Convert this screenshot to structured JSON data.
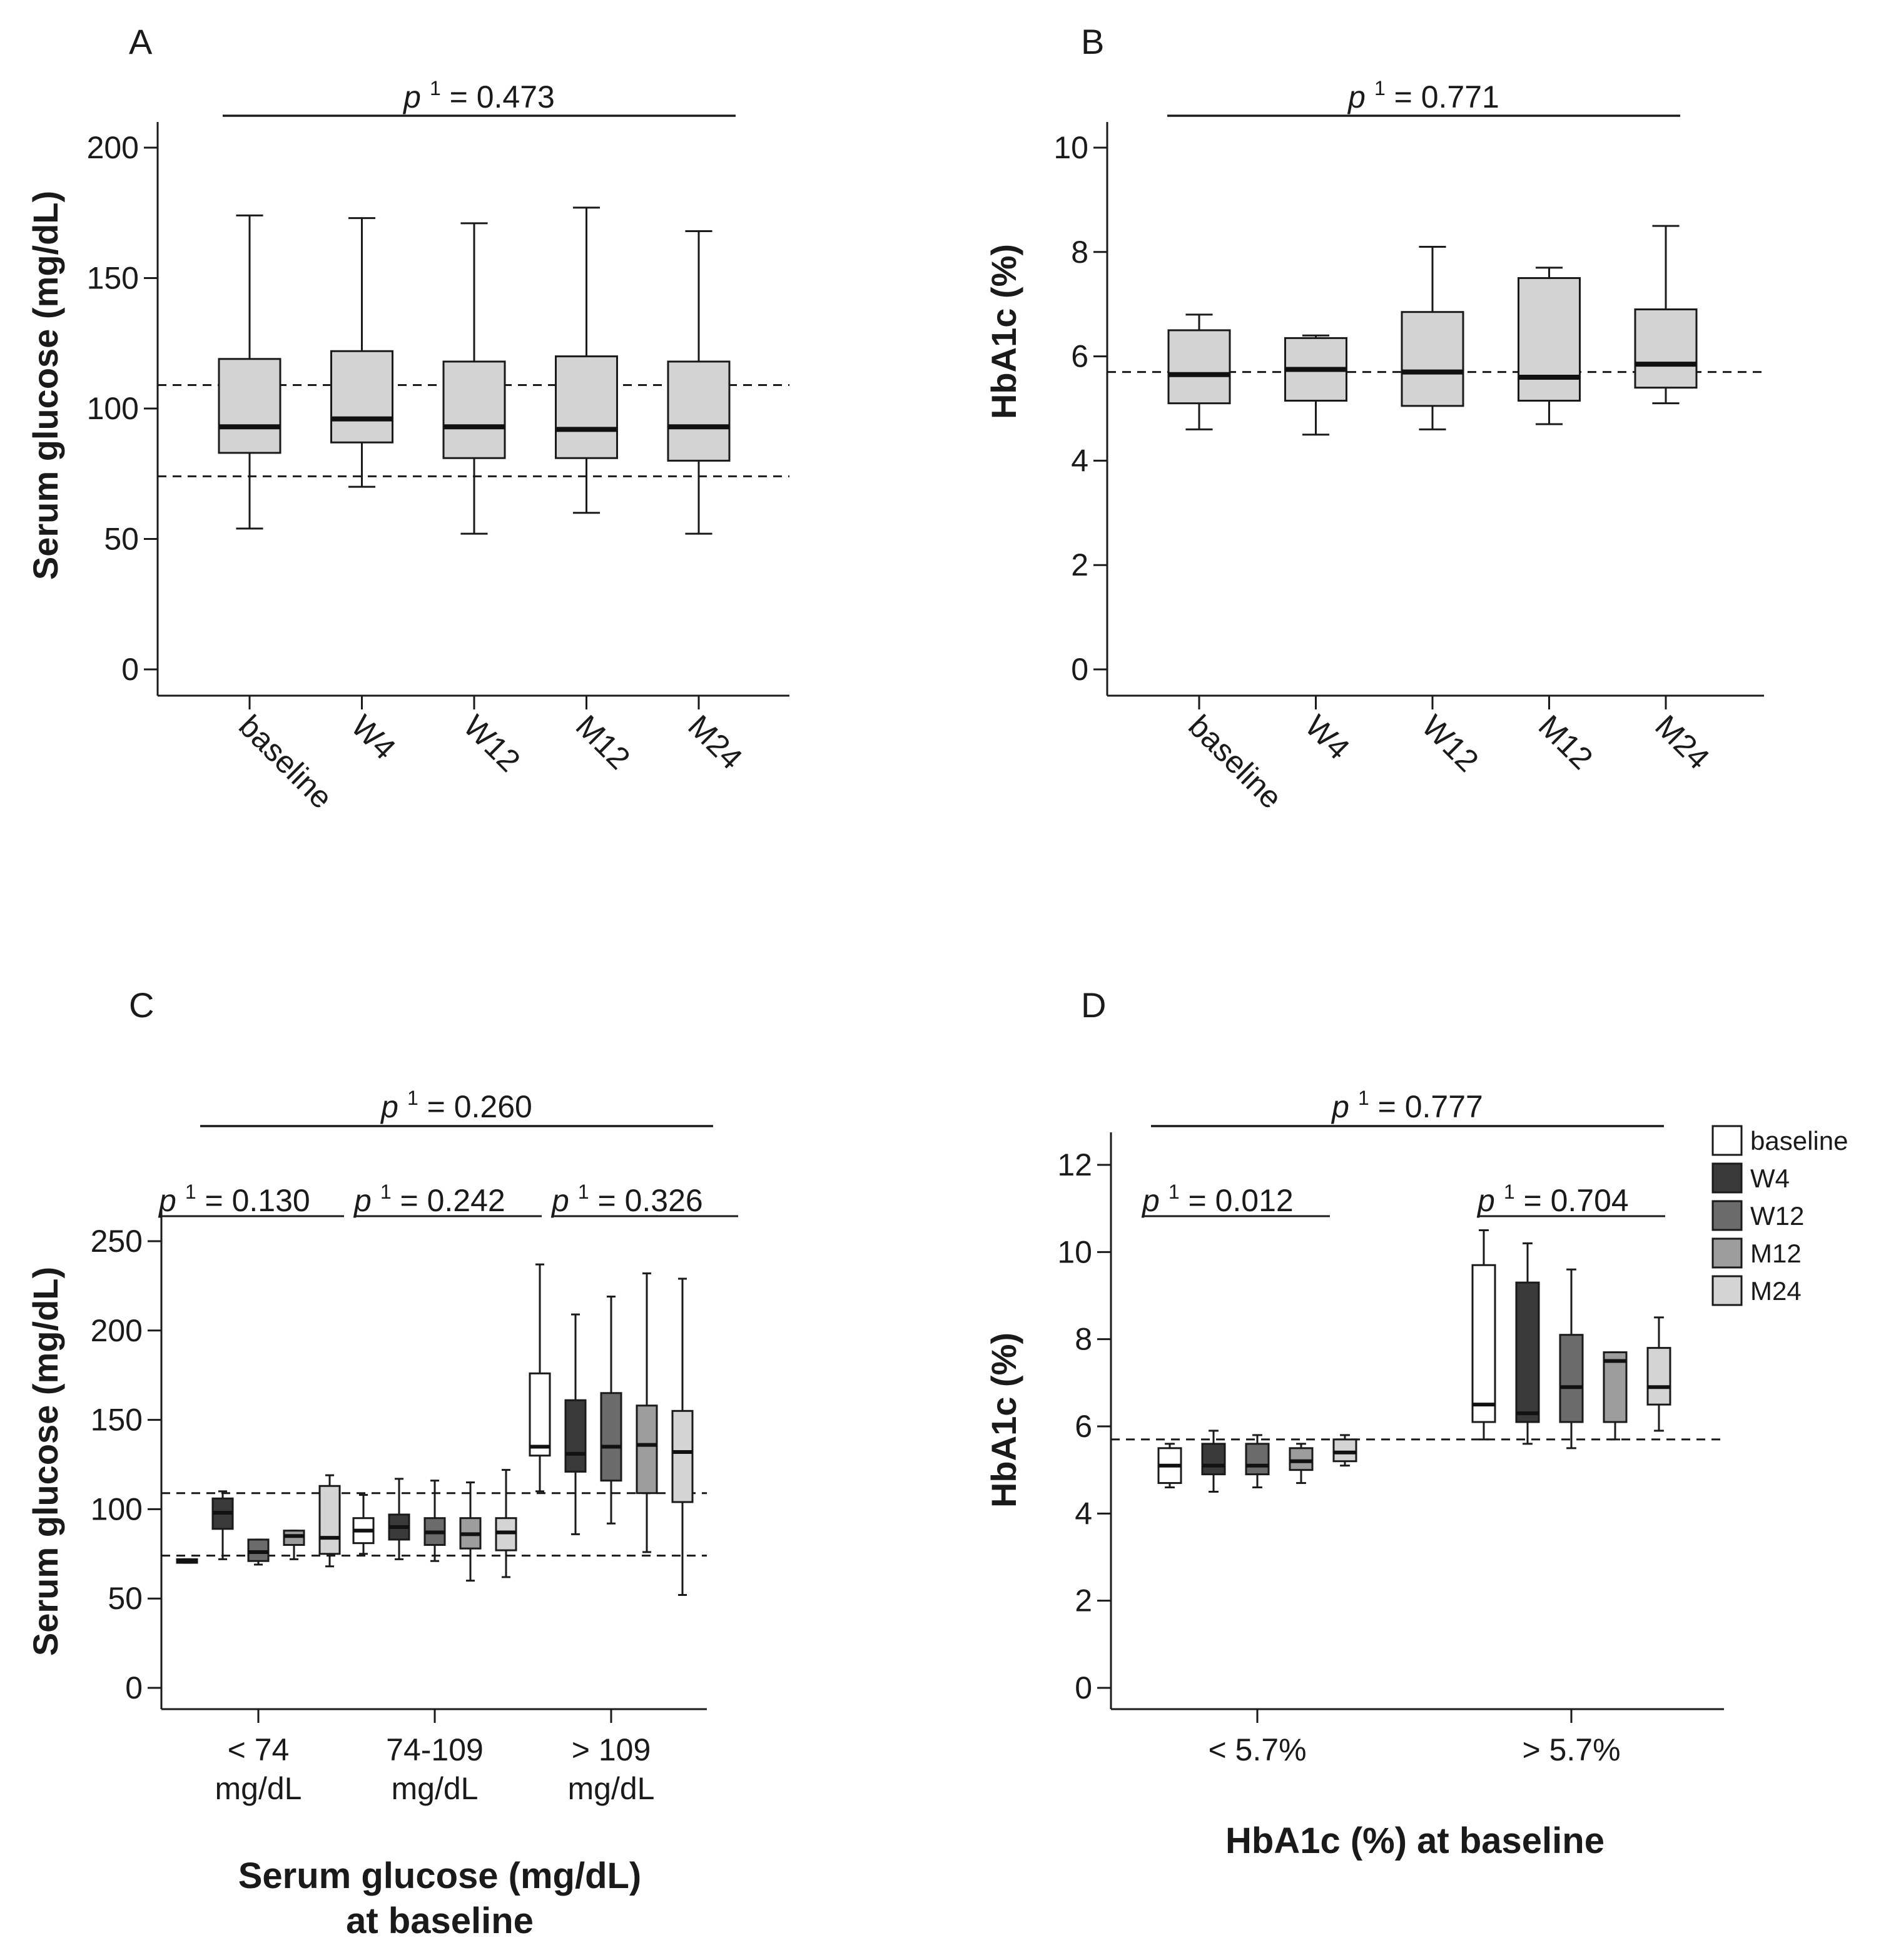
{
  "figure": {
    "colors": {
      "baseline": "#ffffff",
      "W4": "#3a3a3a",
      "W12": "#6b6b6b",
      "M12": "#9d9d9d",
      "M24": "#d4d4d4",
      "single_series_box": "#d3d3d3",
      "stroke": "#1a1a1a"
    }
  },
  "chart_data": [
    {
      "panel": "A",
      "type": "box",
      "ylabel": "Serum glucose (mg/dL)",
      "ylim": [
        0,
        200
      ],
      "yticks": [
        0,
        50,
        100,
        150,
        200
      ],
      "categories": [
        "baseline",
        "W4",
        "W12",
        "M12",
        "M24"
      ],
      "ref_lines": [
        109,
        74
      ],
      "p_overall": {
        "prefix": "p",
        "sup": "1",
        "text": " = 0.473"
      },
      "boxes": [
        {
          "min": 54,
          "q1": 83,
          "median": 93,
          "q3": 119,
          "max": 174
        },
        {
          "min": 70,
          "q1": 87,
          "median": 96,
          "q3": 122,
          "max": 173
        },
        {
          "min": 52,
          "q1": 81,
          "median": 93,
          "q3": 118,
          "max": 171
        },
        {
          "min": 60,
          "q1": 81,
          "median": 92,
          "q3": 120,
          "max": 177
        },
        {
          "min": 52,
          "q1": 80,
          "median": 93,
          "q3": 118,
          "max": 168
        }
      ]
    },
    {
      "panel": "B",
      "type": "box",
      "ylabel": "HbA1c (%)",
      "ylim": [
        0,
        10
      ],
      "yticks": [
        0,
        2,
        4,
        6,
        8,
        10
      ],
      "categories": [
        "baseline",
        "W4",
        "W12",
        "M12",
        "M24"
      ],
      "ref_lines": [
        5.7
      ],
      "p_overall": {
        "prefix": "p",
        "sup": "1",
        "text": " = 0.771"
      },
      "boxes": [
        {
          "min": 4.6,
          "q1": 5.1,
          "median": 5.65,
          "q3": 6.5,
          "max": 6.8
        },
        {
          "min": 4.5,
          "q1": 5.15,
          "median": 5.75,
          "q3": 6.35,
          "max": 6.4
        },
        {
          "min": 4.6,
          "q1": 5.05,
          "median": 5.7,
          "q3": 6.85,
          "max": 8.1
        },
        {
          "min": 4.7,
          "q1": 5.15,
          "median": 5.6,
          "q3": 7.5,
          "max": 7.7
        },
        {
          "min": 5.1,
          "q1": 5.4,
          "median": 5.85,
          "q3": 6.9,
          "max": 8.5
        }
      ]
    },
    {
      "panel": "C",
      "type": "grouped-box",
      "ylabel": "Serum glucose (mg/dL)",
      "xlabel_lines": [
        "Serum glucose (mg/dL)",
        "at baseline"
      ],
      "ylim": [
        0,
        250
      ],
      "yticks": [
        0,
        50,
        100,
        150,
        200,
        250
      ],
      "ref_lines": [
        109,
        74
      ],
      "groups": [
        {
          "label_lines": [
            "< 74",
            "mg/dL"
          ],
          "p": {
            "prefix": "p",
            "sup": "1",
            "text": " = 0.130"
          }
        },
        {
          "label_lines": [
            "74-109",
            "mg/dL"
          ],
          "p": {
            "prefix": "p",
            "sup": "1",
            "text": " = 0.242"
          }
        },
        {
          "label_lines": [
            "> 109",
            "mg/dL"
          ],
          "p": {
            "prefix": "p",
            "sup": "1",
            "text": " = 0.326"
          }
        }
      ],
      "p_overall": {
        "prefix": "p",
        "sup": "1",
        "text": " = 0.260"
      },
      "series": [
        {
          "name": "baseline",
          "boxes": [
            {
              "min": 70,
              "q1": 70,
              "median": 71,
              "q3": 72,
              "max": 72
            },
            {
              "min": 75,
              "q1": 81,
              "median": 88,
              "q3": 95,
              "max": 108
            },
            {
              "min": 110,
              "q1": 130,
              "median": 135,
              "q3": 176,
              "max": 237
            }
          ]
        },
        {
          "name": "W4",
          "boxes": [
            {
              "min": 72,
              "q1": 89,
              "median": 98,
              "q3": 106,
              "max": 110
            },
            {
              "min": 72,
              "q1": 83,
              "median": 90,
              "q3": 97,
              "max": 117
            },
            {
              "min": 86,
              "q1": 121,
              "median": 131,
              "q3": 161,
              "max": 209
            }
          ]
        },
        {
          "name": "W12",
          "boxes": [
            {
              "min": 69,
              "q1": 71,
              "median": 76,
              "q3": 83,
              "max": 83
            },
            {
              "min": 71,
              "q1": 80,
              "median": 87,
              "q3": 95,
              "max": 116
            },
            {
              "min": 92,
              "q1": 116,
              "median": 135,
              "q3": 165,
              "max": 219
            }
          ]
        },
        {
          "name": "M12",
          "boxes": [
            {
              "min": 72,
              "q1": 80,
              "median": 85,
              "q3": 88,
              "max": 88
            },
            {
              "min": 60,
              "q1": 78,
              "median": 86,
              "q3": 95,
              "max": 115
            },
            {
              "min": 76,
              "q1": 109,
              "median": 136,
              "q3": 158,
              "max": 232
            }
          ]
        },
        {
          "name": "M24",
          "boxes": [
            {
              "min": 68,
              "q1": 75,
              "median": 84,
              "q3": 113,
              "max": 119
            },
            {
              "min": 62,
              "q1": 77,
              "median": 87,
              "q3": 95,
              "max": 122
            },
            {
              "min": 52,
              "q1": 104,
              "median": 132,
              "q3": 155,
              "max": 229
            }
          ]
        }
      ]
    },
    {
      "panel": "D",
      "type": "grouped-box",
      "ylabel": "HbA1c (%)",
      "xlabel_lines": [
        "HbA1c (%) at baseline"
      ],
      "ylim": [
        0,
        12
      ],
      "yticks": [
        0,
        2,
        4,
        6,
        8,
        10,
        12
      ],
      "ref_lines": [
        5.7
      ],
      "groups": [
        {
          "label_lines": [
            "< 5.7%"
          ],
          "p": {
            "prefix": "p",
            "sup": "1",
            "text": " = 0.012"
          }
        },
        {
          "label_lines": [
            "> 5.7%"
          ],
          "p": {
            "prefix": "p",
            "sup": "1",
            "text": " = 0.704"
          }
        }
      ],
      "p_overall": {
        "prefix": "p",
        "sup": "1",
        "text": " = 0.777"
      },
      "legend": {
        "position": "top-right"
      },
      "series": [
        {
          "name": "baseline",
          "boxes": [
            {
              "min": 4.6,
              "q1": 4.7,
              "median": 5.1,
              "q3": 5.5,
              "max": 5.6
            },
            {
              "min": 5.7,
              "q1": 6.1,
              "median": 6.5,
              "q3": 9.7,
              "max": 10.5
            }
          ]
        },
        {
          "name": "W4",
          "boxes": [
            {
              "min": 4.5,
              "q1": 4.9,
              "median": 5.1,
              "q3": 5.6,
              "max": 5.9
            },
            {
              "min": 5.6,
              "q1": 6.1,
              "median": 6.3,
              "q3": 9.3,
              "max": 10.2
            }
          ]
        },
        {
          "name": "W12",
          "boxes": [
            {
              "min": 4.6,
              "q1": 4.9,
              "median": 5.1,
              "q3": 5.6,
              "max": 5.8
            },
            {
              "min": 5.5,
              "q1": 6.1,
              "median": 6.9,
              "q3": 8.1,
              "max": 9.6
            }
          ]
        },
        {
          "name": "M12",
          "boxes": [
            {
              "min": 4.7,
              "q1": 5.0,
              "median": 5.2,
              "q3": 5.5,
              "max": 5.6
            },
            {
              "min": 5.7,
              "q1": 6.1,
              "median": 7.5,
              "q3": 7.7,
              "max": 7.7
            }
          ]
        },
        {
          "name": "M24",
          "boxes": [
            {
              "min": 5.1,
              "q1": 5.2,
              "median": 5.4,
              "q3": 5.7,
              "max": 5.8
            },
            {
              "min": 5.9,
              "q1": 6.5,
              "median": 6.9,
              "q3": 7.8,
              "max": 8.5
            }
          ]
        }
      ]
    }
  ]
}
